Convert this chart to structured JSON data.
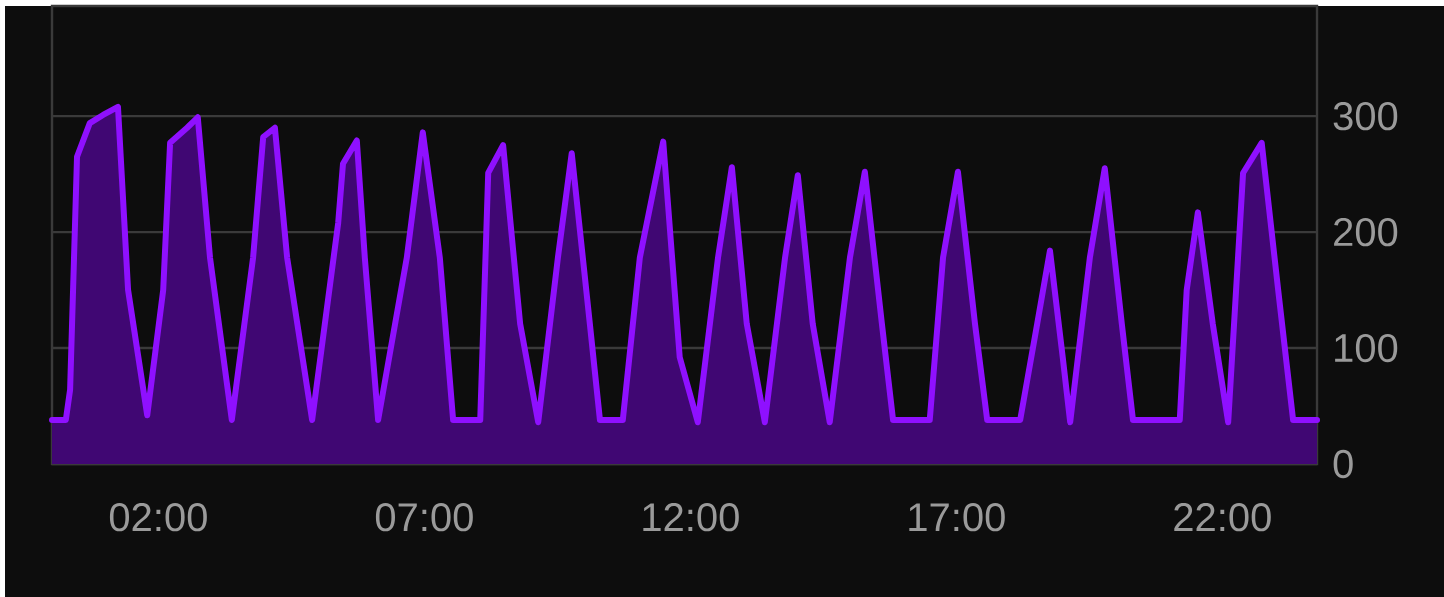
{
  "chart_data": {
    "type": "area",
    "color": "#8f10ff",
    "x": [
      0.0,
      0.26,
      0.34,
      0.47,
      0.71,
      0.96,
      1.24,
      1.43,
      1.79,
      2.09,
      2.22,
      2.54,
      2.74,
      2.97,
      3.38,
      3.78,
      3.97,
      4.19,
      4.42,
      4.89,
      5.38,
      5.47,
      5.73,
      5.88,
      6.13,
      6.67,
      6.97,
      7.29,
      7.54,
      8.05,
      8.2,
      8.48,
      8.8,
      9.14,
      9.51,
      9.77,
      10.11,
      10.3,
      10.73,
      11.05,
      11.49,
      11.8,
      12.14,
      12.52,
      12.78,
      13.06,
      13.4,
      13.78,
      14.02,
      14.3,
      14.62,
      15.0,
      15.28,
      15.6,
      15.81,
      16.5,
      16.75,
      17.03,
      17.35,
      17.58,
      18.2,
      18.52,
      18.76,
      19.0,
      19.14,
      19.51,
      19.79,
      20.11,
      20.32,
      21.2,
      21.33,
      21.54,
      21.82,
      22.11,
      22.39,
      22.74,
      23.05,
      23.33,
      23.78
    ],
    "values": [
      38,
      38,
      64,
      265,
      294,
      301,
      308,
      150,
      42,
      150,
      277,
      290,
      299,
      178,
      38,
      178,
      282,
      290,
      178,
      38,
      208,
      259,
      279,
      178,
      38,
      178,
      286,
      178,
      38,
      38,
      251,
      275,
      121,
      36,
      178,
      268,
      121,
      38,
      38,
      178,
      278,
      92,
      36,
      178,
      256,
      121,
      36,
      178,
      249,
      121,
      36,
      178,
      252,
      121,
      38,
      38,
      178,
      252,
      121,
      38,
      38,
      121,
      184,
      92,
      36,
      178,
      255,
      121,
      38,
      38,
      150,
      217,
      121,
      36,
      251,
      277,
      150,
      38,
      38
    ],
    "xlim": [
      0,
      23.78
    ],
    "xticks": [
      {
        "value": 2,
        "label": "02:00"
      },
      {
        "value": 7,
        "label": "07:00"
      },
      {
        "value": 12,
        "label": "12:00"
      },
      {
        "value": 17,
        "label": "17:00"
      },
      {
        "value": 22,
        "label": "22:00"
      }
    ],
    "ylim": [
      0,
      395
    ],
    "yticks": [
      0,
      100,
      200,
      300
    ],
    "grid": "y"
  }
}
